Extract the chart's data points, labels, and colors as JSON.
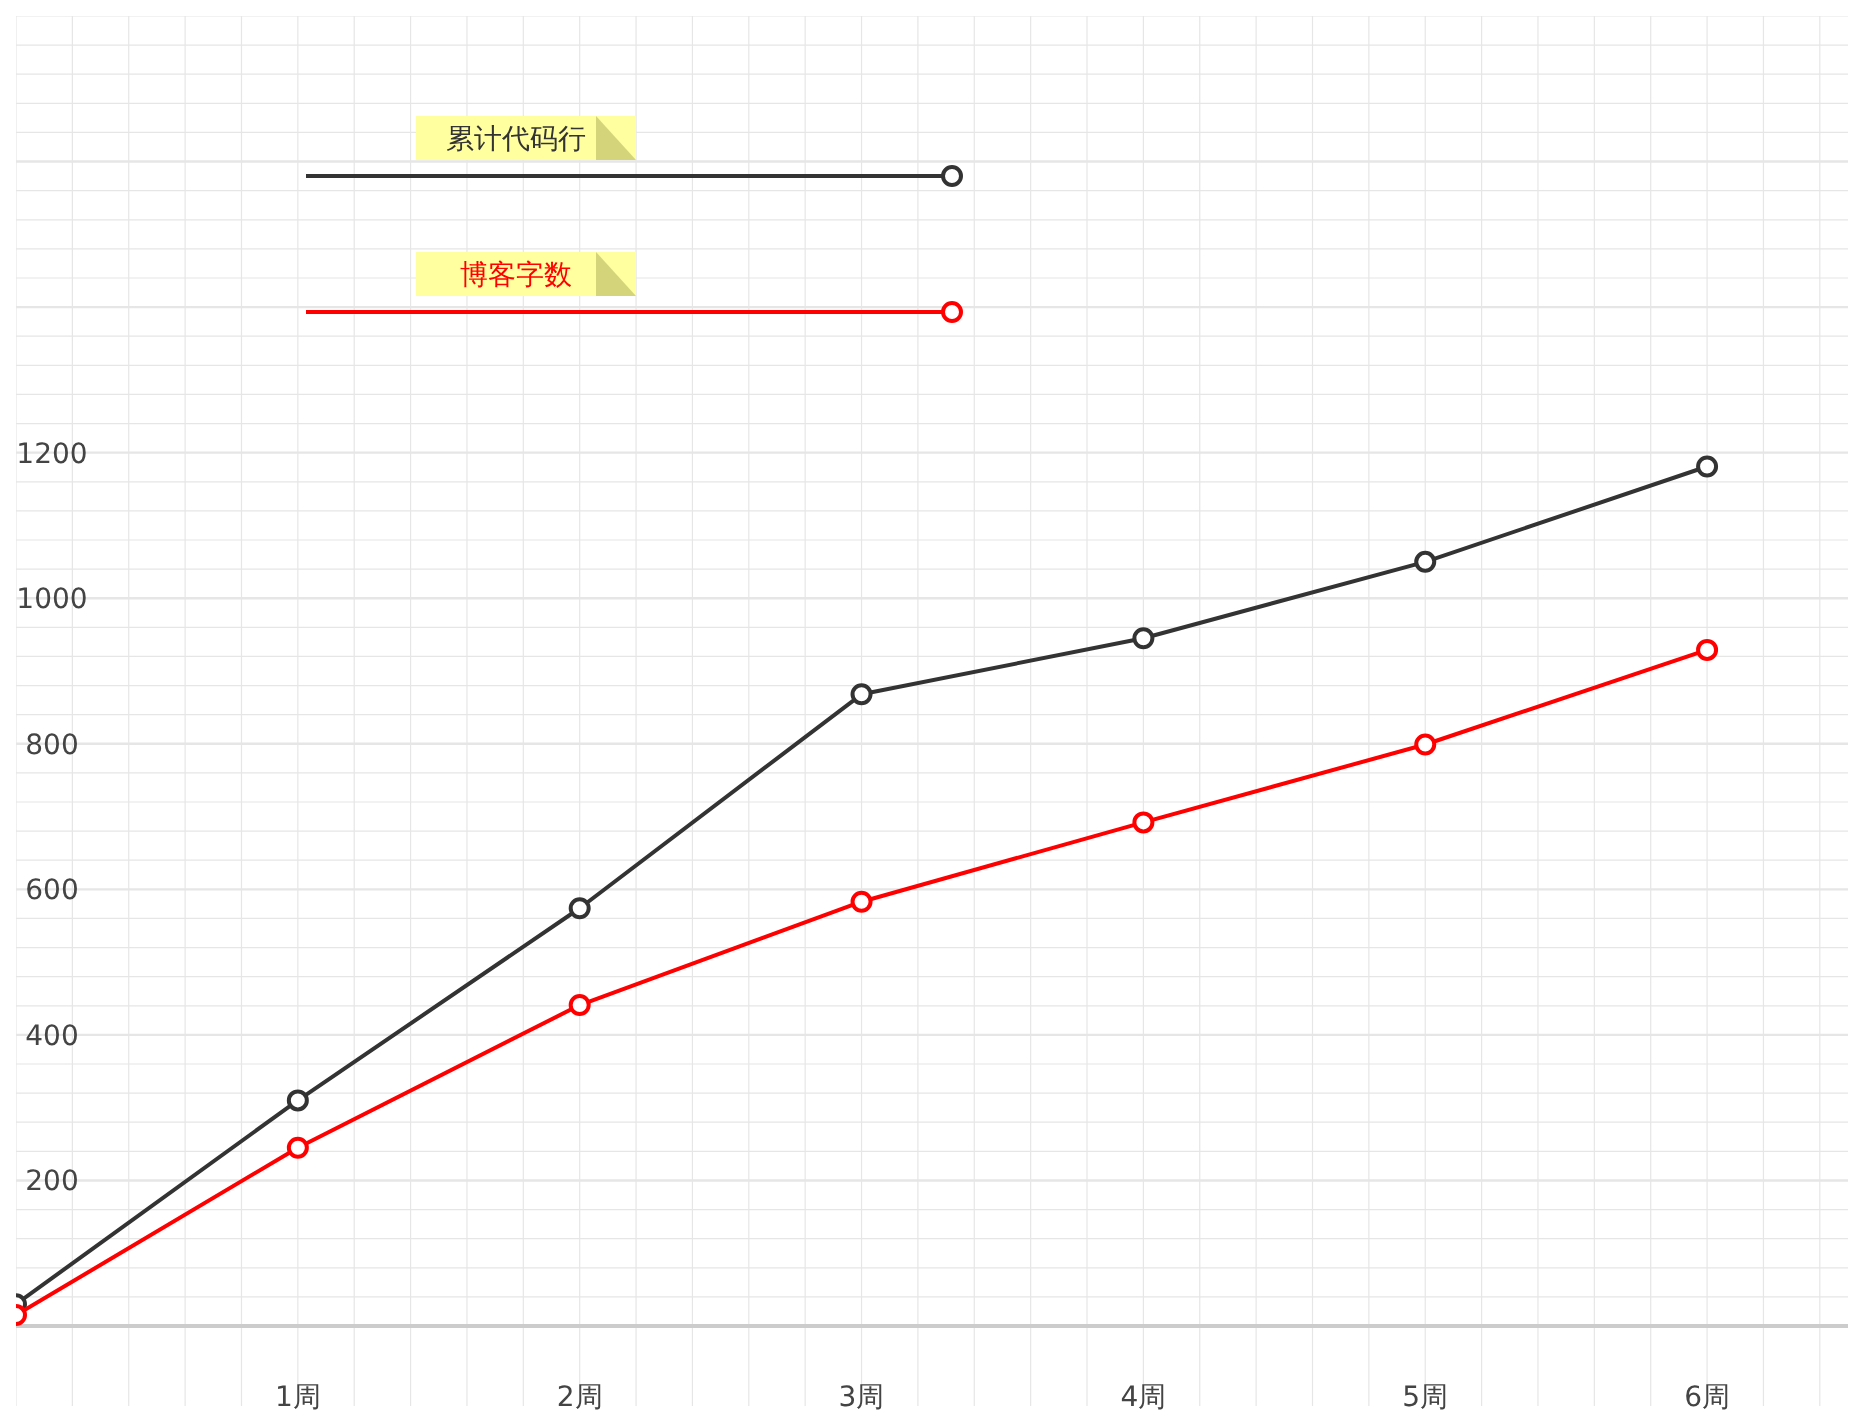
{
  "chart_data": {
    "type": "line",
    "x": [
      0,
      1,
      2,
      3,
      4,
      5,
      6
    ],
    "xlim": [
      0,
      6.5
    ],
    "xticks": [
      {
        "value": 1,
        "label": "1周"
      },
      {
        "value": 2,
        "label": "2周"
      },
      {
        "value": 3,
        "label": "3周"
      },
      {
        "value": 4,
        "label": "4周"
      },
      {
        "value": 5,
        "label": "5周"
      },
      {
        "value": 6,
        "label": "6周"
      }
    ],
    "ylim": [
      0,
      1800
    ],
    "yticks": [
      200,
      400,
      600,
      800,
      1000,
      1200,
      {
        "value": 1400,
        "label": null
      },
      {
        "value": 1600,
        "label": null
      }
    ],
    "series": [
      {
        "name": "累计代码行",
        "color": "#333333",
        "values": [
          30,
          310,
          574,
          868,
          945,
          1050,
          1181
        ]
      },
      {
        "name": "博客字数",
        "color": "#ff0000",
        "values": [
          15,
          245,
          441,
          583,
          692,
          799,
          929
        ]
      }
    ],
    "grid": true,
    "legend": "top left",
    "marker": "circle",
    "line_style": "solid"
  }
}
